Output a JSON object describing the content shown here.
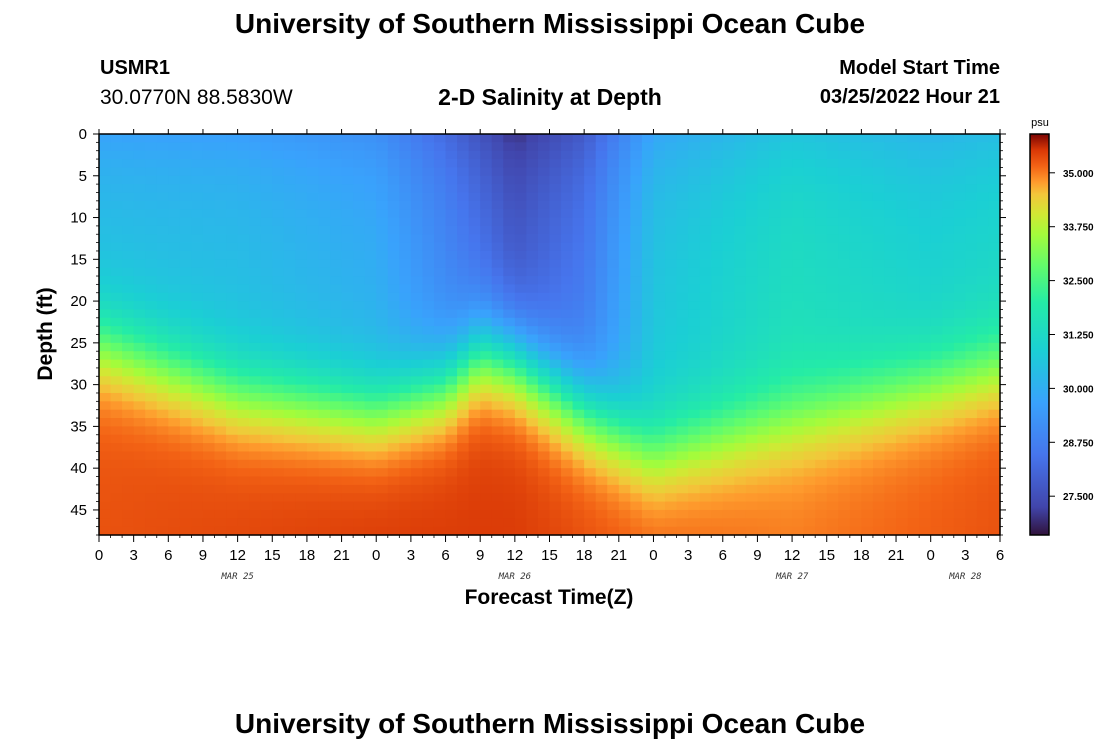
{
  "header": {
    "title": "University of Southern Mississippi Ocean Cube",
    "station_id": "USMR1",
    "station_coords": "30.0770N  88.5830W",
    "subtitle": "2-D Salinity at Depth",
    "model_label": "Model Start Time",
    "model_time": "03/25/2022 Hour 21"
  },
  "footer": {
    "title": "University of Southern Mississippi Ocean Cube"
  },
  "chart_data": {
    "type": "heatmap",
    "title": "2-D Salinity at Depth",
    "xlabel": "Forecast Time(Z)",
    "ylabel": "Depth (ft)",
    "x_tick_labels": [
      "0",
      "3",
      "6",
      "9",
      "12",
      "15",
      "18",
      "21",
      "0",
      "3",
      "6",
      "9",
      "12",
      "15",
      "18",
      "21",
      "0",
      "3",
      "6",
      "9",
      "12",
      "15",
      "18",
      "21",
      "0",
      "3",
      "6"
    ],
    "x_range_hours": [
      0,
      78
    ],
    "day_labels": [
      {
        "label": "MAR 25",
        "hour": 12
      },
      {
        "label": "MAR 26",
        "hour": 36
      },
      {
        "label": "MAR 27",
        "hour": 60
      },
      {
        "label": "MAR 28",
        "hour": 75
      }
    ],
    "y_tick_labels": [
      "0",
      "5",
      "10",
      "15",
      "20",
      "25",
      "30",
      "35",
      "40",
      "45"
    ],
    "y_range_ft": [
      0,
      48
    ],
    "colorbar": {
      "unit": "psu",
      "range": [
        26.6,
        35.9
      ],
      "tick_labels": [
        "35.000",
        "33.750",
        "32.500",
        "31.250",
        "30.000",
        "28.750",
        "27.500"
      ]
    },
    "surface_salinity_psu": [
      {
        "hour": 0,
        "psu": 29.7
      },
      {
        "hour": 12,
        "psu": 29.6
      },
      {
        "hour": 24,
        "psu": 29.2
      },
      {
        "hour": 30,
        "psu": 28.2
      },
      {
        "hour": 36,
        "psu": 27.0
      },
      {
        "hour": 42,
        "psu": 27.8
      },
      {
        "hour": 48,
        "psu": 29.8
      },
      {
        "hour": 60,
        "psu": 30.6
      },
      {
        "hour": 72,
        "psu": 30.2
      },
      {
        "hour": 78,
        "psu": 30.4
      }
    ],
    "deep_salinity_psu": [
      {
        "hour": 0,
        "psu": 35.3
      },
      {
        "hour": 12,
        "psu": 35.4
      },
      {
        "hour": 24,
        "psu": 35.5
      },
      {
        "hour": 36,
        "psu": 35.5
      },
      {
        "hour": 48,
        "psu": 35.2
      },
      {
        "hour": 60,
        "psu": 35.0
      },
      {
        "hour": 78,
        "psu": 35.3
      }
    ],
    "halocline_depth_ft": [
      {
        "hour": 0,
        "ft": 25
      },
      {
        "hour": 12,
        "ft": 31
      },
      {
        "hour": 24,
        "ft": 33
      },
      {
        "hour": 30,
        "ft": 30
      },
      {
        "hour": 33,
        "ft": 26
      },
      {
        "hour": 36,
        "ft": 27
      },
      {
        "hour": 42,
        "ft": 33
      },
      {
        "hour": 48,
        "ft": 38
      },
      {
        "hour": 54,
        "ft": 36
      },
      {
        "hour": 66,
        "ft": 32
      },
      {
        "hour": 78,
        "ft": 28
      }
    ],
    "halocline_thickness_ft": 7
  }
}
